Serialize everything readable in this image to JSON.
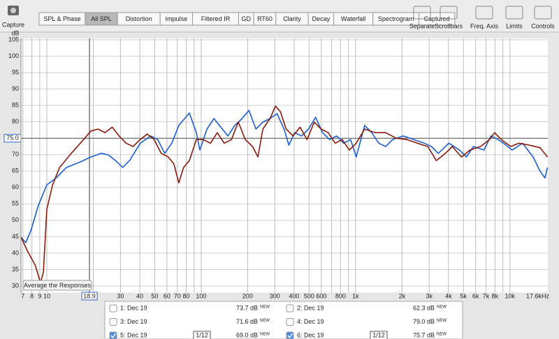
{
  "toolbar": {
    "capture": "Capture",
    "tabs": [
      "SPL & Phase",
      "All SPL",
      "Distortion",
      "Impulse",
      "Filtered IR",
      "GD",
      "RT60",
      "Clarity",
      "Decay",
      "Waterfall",
      "Spectrogram",
      "Captured"
    ],
    "selected_tab": 1,
    "tools": [
      "Separate",
      "Scrollbars",
      "Freq. Axis",
      "Limits",
      "Controls"
    ]
  },
  "chart_data": {
    "type": "line",
    "y_label": "dB",
    "log_x": true,
    "grid": true,
    "xlim": [
      6.8,
      17600
    ],
    "ylim": [
      28,
      105
    ],
    "xticks": [
      7,
      8,
      9,
      10,
      30,
      40,
      50,
      60,
      70,
      80,
      100,
      200,
      300,
      400,
      500,
      600,
      800,
      {
        "value": 1000,
        "label": "1k"
      },
      {
        "value": 2000,
        "label": "2k"
      },
      {
        "value": 3000,
        "label": "3k"
      },
      {
        "value": 4000,
        "label": "4k"
      },
      {
        "value": 5000,
        "label": "5k"
      },
      {
        "value": 6000,
        "label": "6k"
      },
      {
        "value": 7000,
        "label": "7k"
      },
      {
        "value": 8000,
        "label": "8k"
      },
      {
        "value": 10000,
        "label": "10k"
      },
      {
        "value": 17600,
        "label": "17.6kHz"
      }
    ],
    "xgrid_minor": [
      20,
      90,
      700,
      900,
      9000
    ],
    "yticks": [
      30,
      35,
      40,
      45,
      50,
      55,
      60,
      65,
      70,
      75,
      80,
      85,
      90,
      95,
      100,
      105
    ],
    "cursor": {
      "x": {
        "value": 18.9,
        "label": "18.9"
      },
      "y": {
        "value": 75,
        "label": "75.0"
      }
    },
    "series": [
      {
        "color": "#1a5fd0",
        "x": [
          6.8,
          7.3,
          7.9,
          8.8,
          10,
          11.5,
          13.4,
          16.5,
          19.3,
          22.6,
          25.1,
          27.9,
          31,
          34.4,
          40.3,
          47.1,
          52.3,
          58,
          64.5,
          71.6,
          83.8,
          93,
          98,
          109,
          121,
          134,
          149,
          165,
          184,
          204,
          226,
          251,
          279,
          310,
          344,
          370,
          403,
          447,
          496,
          551,
          611,
          679,
          754,
          837,
          929,
          1010,
          1146,
          1273,
          1413,
          1568,
          1741,
          2036,
          2385,
          2789,
          3097,
          3436,
          4025,
          4709,
          5224,
          5807,
          6792,
          7534,
          8375,
          9099,
          10330,
          12080,
          14130,
          15670,
          16870,
          17500
        ],
        "values": [
          44.9,
          43.2,
          47,
          54.4,
          60.8,
          62.9,
          66.1,
          67.8,
          69.3,
          70.4,
          69.9,
          68.2,
          66.1,
          68.2,
          73.5,
          75.7,
          74.6,
          70.4,
          73.5,
          78.9,
          82.7,
          76.7,
          71.4,
          77.8,
          81,
          78.4,
          75.7,
          78.9,
          81,
          83.5,
          77.8,
          79.9,
          81,
          82.5,
          77.8,
          72.9,
          76.7,
          75.7,
          77.8,
          81.4,
          76.7,
          74.6,
          75.7,
          73.5,
          74.6,
          69.3,
          78.9,
          76.7,
          73.5,
          72.5,
          74.6,
          75.7,
          74.6,
          73.5,
          72.5,
          70.4,
          73.5,
          71.4,
          69.3,
          72.5,
          71.4,
          75.7,
          74.6,
          73.5,
          71.4,
          73.5,
          69.3,
          65,
          62.9,
          66.1
        ]
      },
      {
        "color": "#8b1a0a",
        "x": [
          6.8,
          7.5,
          8.4,
          9.1,
          9.5,
          10,
          10.9,
          12.1,
          14.1,
          16.5,
          19.3,
          21.5,
          23.8,
          26.5,
          29.4,
          32.6,
          36.2,
          40.3,
          44.7,
          49.6,
          55.1,
          61.1,
          66.5,
          71.6,
          76.9,
          83.8,
          93,
          103,
          115,
          127,
          141,
          157,
          174,
          193,
          215,
          233,
          251,
          279,
          303,
          326,
          355,
          394,
          437,
          485,
          540,
          598,
          665,
          738,
          820,
          910,
          1010,
          1146,
          1340,
          1568,
          1836,
          2148,
          2512,
          2938,
          3334,
          3819,
          4236,
          4853,
          5508,
          6442,
          7380,
          7943,
          8810,
          10120,
          11460,
          13400,
          15670,
          17500
        ],
        "values": [
          44.9,
          40.6,
          36.4,
          31,
          34.2,
          53.4,
          60.8,
          66.1,
          69.9,
          73.5,
          77.2,
          77.8,
          76.7,
          78.4,
          75.7,
          73.5,
          72.5,
          74.6,
          76.3,
          74.6,
          70.4,
          69.3,
          67.2,
          61.4,
          66.1,
          68.2,
          74.6,
          74.6,
          73.5,
          76.7,
          73.5,
          74.6,
          79.9,
          74.6,
          72.5,
          69.3,
          77.8,
          81,
          84.8,
          83.1,
          77.8,
          75.7,
          78.4,
          74.6,
          79.9,
          77.8,
          76.7,
          73.5,
          74.6,
          71.4,
          73.5,
          77.8,
          76.7,
          76.7,
          75,
          74.6,
          73.5,
          72.5,
          68.2,
          70.4,
          72.5,
          69.3,
          71.4,
          72.5,
          74.6,
          76.7,
          74.6,
          72.5,
          73.5,
          72.9,
          72.1,
          69.3
        ]
      }
    ]
  },
  "average_button": "Average the Responses",
  "new_badge": "NEW",
  "measurements": [
    {
      "label": "1: Dec 19",
      "level": "73.7 dB",
      "color": "#9b2a0c",
      "checked": false
    },
    {
      "label": "2: Dec 19",
      "level": "62.3 dB",
      "color": "#777777",
      "checked": false
    },
    {
      "label": "3: Dec 19",
      "level": "71.6 dB",
      "color": "#2556c8",
      "checked": false
    },
    {
      "label": "4: Dec 19",
      "level": "79.0 dB",
      "color": "#2a8a2a",
      "checked": false
    },
    {
      "label": "5: Dec 19",
      "level": "69.0 dB",
      "color": "#2556c8",
      "checked": true,
      "smoothing": "1/12"
    },
    {
      "label": "6: Dec 19",
      "level": "75.7 dB",
      "color": "#9b2a0c",
      "checked": true,
      "smoothing": "1/12"
    }
  ]
}
